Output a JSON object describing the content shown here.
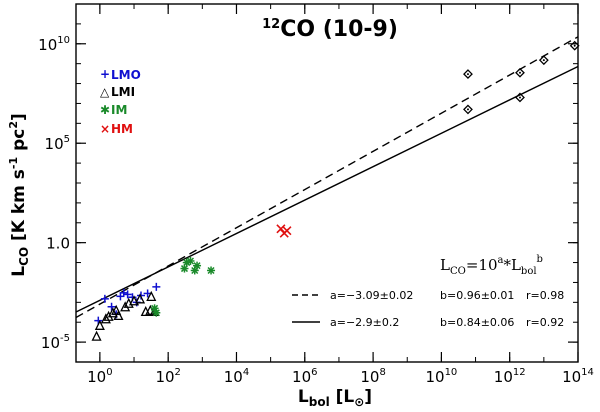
{
  "chart_data": {
    "type": "scatter",
    "title": "12CO (10-9)",
    "title_parts": {
      "isotope": "12",
      "molecule": "CO (10-9)"
    },
    "xlabel": {
      "main": "L",
      "sub": "bol",
      "unit_open": " [L",
      "unit_close": "]"
    },
    "ylabel": {
      "main": "L",
      "sub": "CO",
      "unit": " [K km s",
      "sup1": "-1",
      "unit2": " pc",
      "sup2": "2",
      "close": "]"
    },
    "x_scale": "log",
    "y_scale": "log",
    "xlim": [
      0.2,
      100000000000000.0
    ],
    "ylim": [
      1e-06,
      1000000000000.0
    ],
    "x_ticks": [
      {
        "value": 1,
        "base": "10",
        "exp": "0"
      },
      {
        "value": 100,
        "base": "10",
        "exp": "2"
      },
      {
        "value": 10000,
        "base": "10",
        "exp": "4"
      },
      {
        "value": 1000000,
        "base": "10",
        "exp": "6"
      },
      {
        "value": 100000000,
        "base": "10",
        "exp": "8"
      },
      {
        "value": 10000000000,
        "base": "10",
        "exp": "10"
      },
      {
        "value": 1000000000000,
        "base": "10",
        "exp": "12"
      },
      {
        "value": 100000000000000,
        "base": "10",
        "exp": "14"
      }
    ],
    "y_ticks": [
      {
        "value": 1e-05,
        "base": "10",
        "exp": "-5"
      },
      {
        "value": 1,
        "base": "10",
        "exp": "0",
        "plain": "1.0"
      },
      {
        "value": 100000,
        "base": "10",
        "exp": "5"
      },
      {
        "value": 10000000000,
        "base": "10",
        "exp": "10"
      }
    ],
    "legend": [
      {
        "label": "LMO",
        "marker": "plus",
        "color": "#1010d0"
      },
      {
        "label": "LMI",
        "marker": "triangle",
        "color": "#000000"
      },
      {
        "label": "IM",
        "marker": "asterisk",
        "color": "#1a8a2a"
      },
      {
        "label": "HM",
        "marker": "cross",
        "color": "#e01010"
      }
    ],
    "legend_placement": "top-left",
    "series": [
      {
        "name": "LMO",
        "marker": "plus",
        "color": "#1010d0",
        "points": [
          {
            "x": 0.9,
            "y": 0.00012
          },
          {
            "x": 1.4,
            "y": 0.0015
          },
          {
            "x": 2.2,
            "y": 0.0006
          },
          {
            "x": 3.0,
            "y": 0.00025
          },
          {
            "x": 4.0,
            "y": 0.002
          },
          {
            "x": 5.0,
            "y": 0.003
          },
          {
            "x": 6.5,
            "y": 0.0025
          },
          {
            "x": 9.0,
            "y": 0.0018
          },
          {
            "x": 12,
            "y": 0.001
          },
          {
            "x": 16,
            "y": 0.0022
          },
          {
            "x": 25,
            "y": 0.0028
          },
          {
            "x": 45,
            "y": 0.006
          }
        ]
      },
      {
        "name": "LMI",
        "marker": "triangle",
        "color": "#000000",
        "points": [
          {
            "x": 0.8,
            "y": 2e-05
          },
          {
            "x": 1.0,
            "y": 7e-05
          },
          {
            "x": 1.5,
            "y": 0.00015
          },
          {
            "x": 1.8,
            "y": 0.0002
          },
          {
            "x": 2.4,
            "y": 0.0003
          },
          {
            "x": 3.0,
            "y": 0.0004
          },
          {
            "x": 3.5,
            "y": 0.00022
          },
          {
            "x": 5.5,
            "y": 0.0006
          },
          {
            "x": 7.0,
            "y": 0.0009
          },
          {
            "x": 10,
            "y": 0.0012
          },
          {
            "x": 15,
            "y": 0.0015
          },
          {
            "x": 22,
            "y": 0.00035
          },
          {
            "x": 30,
            "y": 0.0004
          },
          {
            "x": 32,
            "y": 0.002
          },
          {
            "x": 40,
            "y": 0.00035
          }
        ]
      },
      {
        "name": "IM",
        "marker": "asterisk",
        "color": "#1a8a2a",
        "points": [
          {
            "x": 40,
            "y": 0.0005
          },
          {
            "x": 45,
            "y": 0.0003
          },
          {
            "x": 300,
            "y": 0.05
          },
          {
            "x": 350,
            "y": 0.1
          },
          {
            "x": 450,
            "y": 0.12
          },
          {
            "x": 600,
            "y": 0.04
          },
          {
            "x": 700,
            "y": 0.07
          },
          {
            "x": 1800,
            "y": 0.04
          }
        ]
      },
      {
        "name": "HM",
        "marker": "cross",
        "color": "#e01010",
        "points": [
          {
            "x": 200000,
            "y": 5
          },
          {
            "x": 250000,
            "y": 3
          },
          {
            "x": 300000,
            "y": 4
          }
        ]
      },
      {
        "name": "",
        "marker": "diamond",
        "color": "#000000",
        "points": [
          {
            "x": 60000000000.0,
            "y": 300000000.0
          },
          {
            "x": 60000000000.0,
            "y": 5000000.0
          },
          {
            "x": 2000000000000.0,
            "y": 350000000.0
          },
          {
            "x": 2000000000000.0,
            "y": 20000000.0
          },
          {
            "x": 10000000000000.0,
            "y": 1500000000.0
          },
          {
            "x": 80000000000000.0,
            "y": 8000000000.0
          }
        ]
      }
    ],
    "fit_equation": {
      "lhs": "L",
      "lhs_sub": "CO",
      "eq": "=10",
      "sup_a": "a",
      "times": "*L",
      "sub_bol": "bol",
      "sup_b": "b"
    },
    "fits": [
      {
        "style": "dashed",
        "a": -3.09,
        "b": 0.96,
        "text_a": "a=−3.09±0.02",
        "text_b": "b=0.96±0.01",
        "text_r": "r=0.98"
      },
      {
        "style": "solid",
        "a": -2.9,
        "b": 0.84,
        "text_a": "a=−2.9±0.2",
        "text_b": "b=0.84±0.06",
        "text_r": "r=0.92"
      }
    ],
    "grid": false
  }
}
